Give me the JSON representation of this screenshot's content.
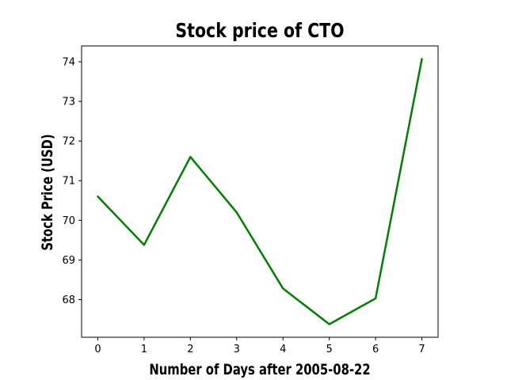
{
  "chart_data": {
    "type": "line",
    "title": "Stock price of CTO",
    "xlabel": "Number of Days after 2005-08-22",
    "ylabel": "Stock Price (USD)",
    "x": [
      0,
      1,
      2,
      3,
      4,
      5,
      6,
      7
    ],
    "series": [
      {
        "values": [
          70.6,
          69.38,
          71.6,
          70.2,
          68.28,
          67.38,
          68.03,
          74.07
        ]
      }
    ],
    "xticks": [
      "0",
      "1",
      "2",
      "3",
      "4",
      "5",
      "6",
      "7"
    ],
    "yticks": [
      "68",
      "69",
      "70",
      "71",
      "72",
      "73",
      "74"
    ],
    "xlim": [
      -0.35,
      7.35
    ],
    "ylim": [
      67.05,
      74.4
    ],
    "grid": false,
    "line_color": "#008000"
  }
}
